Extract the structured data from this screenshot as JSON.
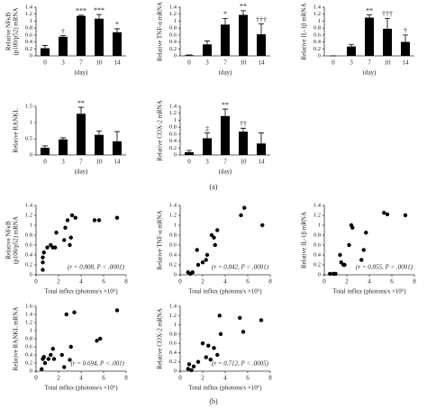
{
  "chart_data": [
    {
      "type": "bar",
      "ylabel": [
        "Relative NFκB",
        "(p100/p52) mRNA"
      ],
      "xlabel": "(day)",
      "categories": [
        "0",
        "3",
        "7",
        "10",
        "14"
      ],
      "values": [
        0.22,
        0.55,
        1.15,
        1.07,
        0.68
      ],
      "errors": [
        0.08,
        0.03,
        0.02,
        0.12,
        0.1
      ],
      "annotations": [
        null,
        "†",
        "***",
        "***",
        "*"
      ],
      "ylim": [
        0,
        1.4
      ],
      "yticks": [
        0,
        0.2,
        0.4,
        0.6,
        0.8,
        1,
        1.2,
        1.4
      ],
      "color": "#000000"
    },
    {
      "type": "bar",
      "ylabel": [
        "Relative TNF-α mRNA"
      ],
      "xlabel": "(day)",
      "categories": [
        "0",
        "3",
        "7",
        "10",
        "14"
      ],
      "values": [
        0.02,
        0.33,
        0.9,
        1.18,
        0.62
      ],
      "errors": [
        0.01,
        0.1,
        0.18,
        0.12,
        0.3
      ],
      "annotations": [
        null,
        null,
        "*",
        "**",
        "†††"
      ],
      "ylim": [
        0,
        1.4
      ],
      "yticks": [
        0,
        0.2,
        0.4,
        0.6,
        0.8,
        1,
        1.2,
        1.4
      ],
      "color": "#000000"
    },
    {
      "type": "bar",
      "ylabel": [
        "Relative IL-1β mRNA"
      ],
      "xlabel": "(day)",
      "categories": [
        "0",
        "3",
        "7",
        "10",
        "14"
      ],
      "values": [
        0,
        0.27,
        1.1,
        0.78,
        0.4
      ],
      "errors": [
        0,
        0.06,
        0.08,
        0.3,
        0.2
      ],
      "annotations": [
        null,
        null,
        "**",
        "†††",
        "†"
      ],
      "ylim": [
        0,
        1.4
      ],
      "yticks": [
        0,
        0.2,
        0.4,
        0.6,
        0.8,
        1,
        1.2,
        1.4
      ],
      "color": "#000000"
    },
    {
      "type": "bar",
      "ylabel": [
        "Relative RANKL"
      ],
      "xlabel": "(day)",
      "categories": [
        "0",
        "3",
        "7",
        "10",
        "14"
      ],
      "values": [
        0.22,
        0.48,
        1.27,
        0.62,
        0.42
      ],
      "errors": [
        0.06,
        0.05,
        0.2,
        0.12,
        0.3
      ],
      "annotations": [
        null,
        null,
        "**",
        null,
        null
      ],
      "ylim": [
        0,
        1.5
      ],
      "yticks": [
        0,
        0.5,
        1,
        1.5
      ],
      "color": "#000000"
    },
    {
      "type": "bar",
      "ylabel": [
        "Relative COX-2 mRNA"
      ],
      "xlabel": "(day)",
      "categories": [
        "0",
        "3",
        "7",
        "10",
        "14"
      ],
      "values": [
        0.08,
        0.48,
        1.12,
        0.67,
        0.33
      ],
      "errors": [
        0.05,
        0.15,
        0.2,
        0.1,
        0.3
      ],
      "annotations": [
        null,
        "‡",
        "**",
        "††",
        null
      ],
      "ylim": [
        0,
        1.4
      ],
      "yticks": [
        0,
        0.2,
        0.4,
        0.6,
        0.8,
        1,
        1.2,
        1.4
      ],
      "color": "#000000"
    },
    {
      "type": "scatter",
      "ylabel": [
        "Relative NFκB",
        "(p100/p52) mRNA"
      ],
      "xlabel": "Total influx (photons/s ×10⁶)",
      "annotation": "(r = 0.808, P < .0001)",
      "x": [
        0.6,
        0.6,
        0.6,
        0.7,
        1,
        1.3,
        1.5,
        1.7,
        1.8,
        2.5,
        2.6,
        2.8,
        3,
        3.1,
        3.2,
        3.5,
        5.2,
        5.6,
        7.2
      ],
      "values": [
        0.1,
        0.25,
        0.35,
        0.45,
        0.55,
        0.6,
        0.55,
        0.55,
        0.85,
        0.7,
        0.95,
        1.1,
        0.6,
        0.75,
        1.2,
        1.15,
        1.1,
        1.1,
        1.15
      ],
      "xlim": [
        0,
        8
      ],
      "xticks": [
        0,
        2,
        4,
        6,
        8
      ],
      "ylim": [
        0,
        1.4
      ],
      "yticks": [
        0,
        0.2,
        0.4,
        0.6,
        0.8,
        1,
        1.2,
        1.4
      ],
      "color": "#000000"
    },
    {
      "type": "scatter",
      "ylabel": [
        "Relative TNF-α mRNA"
      ],
      "xlabel": "Total influx (photons/s ×10⁶)",
      "annotation": "(r = 0.842, P < .0001)",
      "x": [
        0.7,
        0.9,
        1.1,
        1.5,
        1.6,
        2,
        2.3,
        2.4,
        2.8,
        3,
        3.1,
        3.3,
        5.4,
        5.7,
        7.3
      ],
      "values": [
        0.05,
        0.02,
        0.05,
        0.5,
        0.2,
        0.25,
        0.3,
        0.4,
        0.8,
        0.75,
        0.6,
        0.9,
        1.2,
        1.35,
        1.0
      ],
      "xlim": [
        0,
        8
      ],
      "xticks": [
        0,
        2,
        4,
        6,
        8
      ],
      "ylim": [
        0,
        1.4
      ],
      "yticks": [
        0,
        0.2,
        0.4,
        0.6,
        0.8,
        1,
        1.2,
        1.4
      ],
      "color": "#000000"
    },
    {
      "type": "scatter",
      "ylabel": [
        "Relative IL-1β mRNA"
      ],
      "xlabel": "Total influx (photons/s ×10⁶)",
      "annotation": "(r = 0.855, P < .0001)",
      "x": [
        0.5,
        0.8,
        1,
        1.4,
        1.5,
        1.7,
        1.8,
        2.2,
        2.4,
        2.5,
        3.3,
        3.5,
        3.7,
        5.3,
        5.6,
        7.2
      ],
      "values": [
        0.02,
        0.02,
        0.02,
        0.4,
        0.25,
        0.2,
        0.2,
        0.6,
        1.0,
        0.95,
        0.3,
        0.5,
        0.85,
        1.25,
        1.22,
        1.2
      ],
      "xlim": [
        0,
        8
      ],
      "xticks": [
        0,
        2,
        4,
        6,
        8
      ],
      "ylim": [
        0,
        1.4
      ],
      "yticks": [
        0,
        0.2,
        0.4,
        0.6,
        0.8,
        1,
        1.2,
        1.4
      ],
      "color": "#000000"
    },
    {
      "type": "scatter",
      "ylabel": [
        "Relative RANKL mRNA"
      ],
      "xlabel": "Total influx (photons/s ×10⁶)",
      "annotation": "(r = 0.694, P < .001)",
      "x": [
        0.5,
        0.6,
        0.7,
        0.8,
        1.1,
        1.3,
        1.5,
        1.6,
        2.3,
        2.5,
        2.7,
        3,
        3.1,
        3.4,
        5.4,
        5.7,
        7.2
      ],
      "values": [
        0.05,
        0.3,
        0.35,
        0.2,
        0.3,
        0.4,
        0.55,
        0.3,
        0.4,
        0.1,
        1.4,
        0.28,
        0.6,
        1.45,
        0.75,
        0.8,
        1.5
      ],
      "xlim": [
        0,
        8
      ],
      "xticks": [
        0,
        2,
        4,
        6,
        8
      ],
      "ylim": [
        0,
        1.6
      ],
      "yticks": [
        0,
        0.2,
        0.4,
        0.6,
        0.8,
        1,
        1.2,
        1.4,
        1.6
      ],
      "color": "#000000"
    },
    {
      "type": "scatter",
      "ylabel": [
        "Relative COX-2 mRNA"
      ],
      "xlabel": "Total influx (photons/s ×10⁶)",
      "annotation": "(r = 0.712, P < .0005)",
      "x": [
        0.7,
        0.8,
        1,
        1.2,
        1.6,
        2,
        2.3,
        2.5,
        2.7,
        3,
        3.3,
        3.5,
        3.6,
        5.3,
        5.6,
        7.2
      ],
      "values": [
        0.05,
        0.15,
        0.02,
        0.1,
        0.2,
        0.6,
        0.3,
        0.55,
        0.25,
        0.5,
        0.35,
        1.2,
        0.8,
        1.15,
        0.85,
        1.1
      ],
      "xlim": [
        0,
        8
      ],
      "xticks": [
        0,
        2,
        4,
        6,
        8
      ],
      "ylim": [
        0,
        1.4
      ],
      "yticks": [
        0,
        0.2,
        0.4,
        0.6,
        0.8,
        1,
        1.2,
        1.4
      ],
      "color": "#000000"
    }
  ],
  "panel_labels": [
    "(a)",
    "(b)"
  ]
}
